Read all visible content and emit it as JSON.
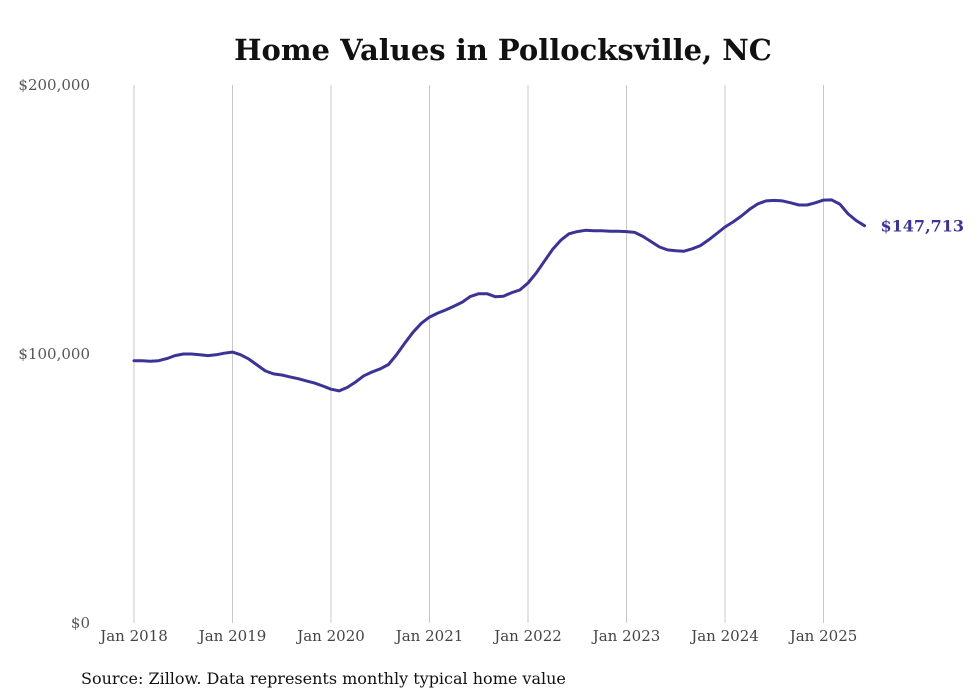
{
  "chart_data": {
    "type": "line",
    "title": "Home Values in Pollocksville, NC",
    "xlabel": "",
    "ylabel": "",
    "ylim": [
      0,
      200000
    ],
    "y_ticks": [
      {
        "value": 0,
        "label": "$0"
      },
      {
        "value": 100000,
        "label": "$100,000"
      },
      {
        "value": 200000,
        "label": "$200,000"
      }
    ],
    "x_ticks": [
      {
        "value": "2018-01",
        "label": "Jan 2018"
      },
      {
        "value": "2019-01",
        "label": "Jan 2019"
      },
      {
        "value": "2020-01",
        "label": "Jan 2020"
      },
      {
        "value": "2021-01",
        "label": "Jan 2021"
      },
      {
        "value": "2022-01",
        "label": "Jan 2022"
      },
      {
        "value": "2023-01",
        "label": "Jan 2023"
      },
      {
        "value": "2024-01",
        "label": "Jan 2024"
      },
      {
        "value": "2025-01",
        "label": "Jan 2025"
      }
    ],
    "grid": {
      "vertical": true,
      "horizontal": false
    },
    "series": [
      {
        "color": "#3b3494",
        "x": [
          "2018-01",
          "2018-02",
          "2018-03",
          "2018-04",
          "2018-05",
          "2018-06",
          "2018-07",
          "2018-08",
          "2018-09",
          "2018-10",
          "2018-11",
          "2018-12",
          "2019-01",
          "2019-02",
          "2019-03",
          "2019-04",
          "2019-05",
          "2019-06",
          "2019-07",
          "2019-08",
          "2019-09",
          "2019-10",
          "2019-11",
          "2019-12",
          "2020-01",
          "2020-02",
          "2020-03",
          "2020-04",
          "2020-05",
          "2020-06",
          "2020-07",
          "2020-08",
          "2020-09",
          "2020-10",
          "2020-11",
          "2020-12",
          "2021-01",
          "2021-02",
          "2021-03",
          "2021-04",
          "2021-05",
          "2021-06",
          "2021-07",
          "2021-08",
          "2021-09",
          "2021-10",
          "2021-11",
          "2021-12",
          "2022-01",
          "2022-02",
          "2022-03",
          "2022-04",
          "2022-05",
          "2022-06",
          "2022-07",
          "2022-08",
          "2022-09",
          "2022-10",
          "2022-11",
          "2022-12",
          "2023-01",
          "2023-02",
          "2023-03",
          "2023-04",
          "2023-05",
          "2023-06",
          "2023-07",
          "2023-08",
          "2023-09",
          "2023-10",
          "2023-11",
          "2023-12",
          "2024-01",
          "2024-02",
          "2024-03",
          "2024-04",
          "2024-05",
          "2024-06",
          "2024-07",
          "2024-08",
          "2024-09",
          "2024-10",
          "2024-11",
          "2024-12",
          "2025-01",
          "2025-02",
          "2025-03",
          "2025-04",
          "2025-05",
          "2025-06"
        ],
        "values": [
          97500,
          97500,
          97300,
          97500,
          98300,
          99400,
          100000,
          100000,
          99700,
          99400,
          99700,
          100300,
          100700,
          99700,
          98100,
          95900,
          93700,
          92600,
          92200,
          91500,
          90800,
          90000,
          89200,
          88100,
          86900,
          86300,
          87600,
          89600,
          91900,
          93300,
          94500,
          96100,
          99800,
          104100,
          108100,
          111400,
          113700,
          115200,
          116400,
          117800,
          119300,
          121400,
          122400,
          122400,
          121300,
          121500,
          122800,
          123800,
          126400,
          130100,
          134500,
          138900,
          142300,
          144700,
          145500,
          146000,
          145800,
          145800,
          145600,
          145600,
          145500,
          145200,
          143700,
          141800,
          139800,
          138700,
          138400,
          138200,
          139100,
          140300,
          142400,
          144800,
          147200,
          149100,
          151300,
          153800,
          155800,
          156900,
          157100,
          156900,
          156200,
          155400,
          155400,
          156200,
          157200,
          157300,
          155700,
          152100,
          149600,
          147713
        ],
        "end_label": "$147,713"
      }
    ]
  },
  "footer": {
    "source": "Source: Zillow. Data represents monthly typical home value"
  }
}
